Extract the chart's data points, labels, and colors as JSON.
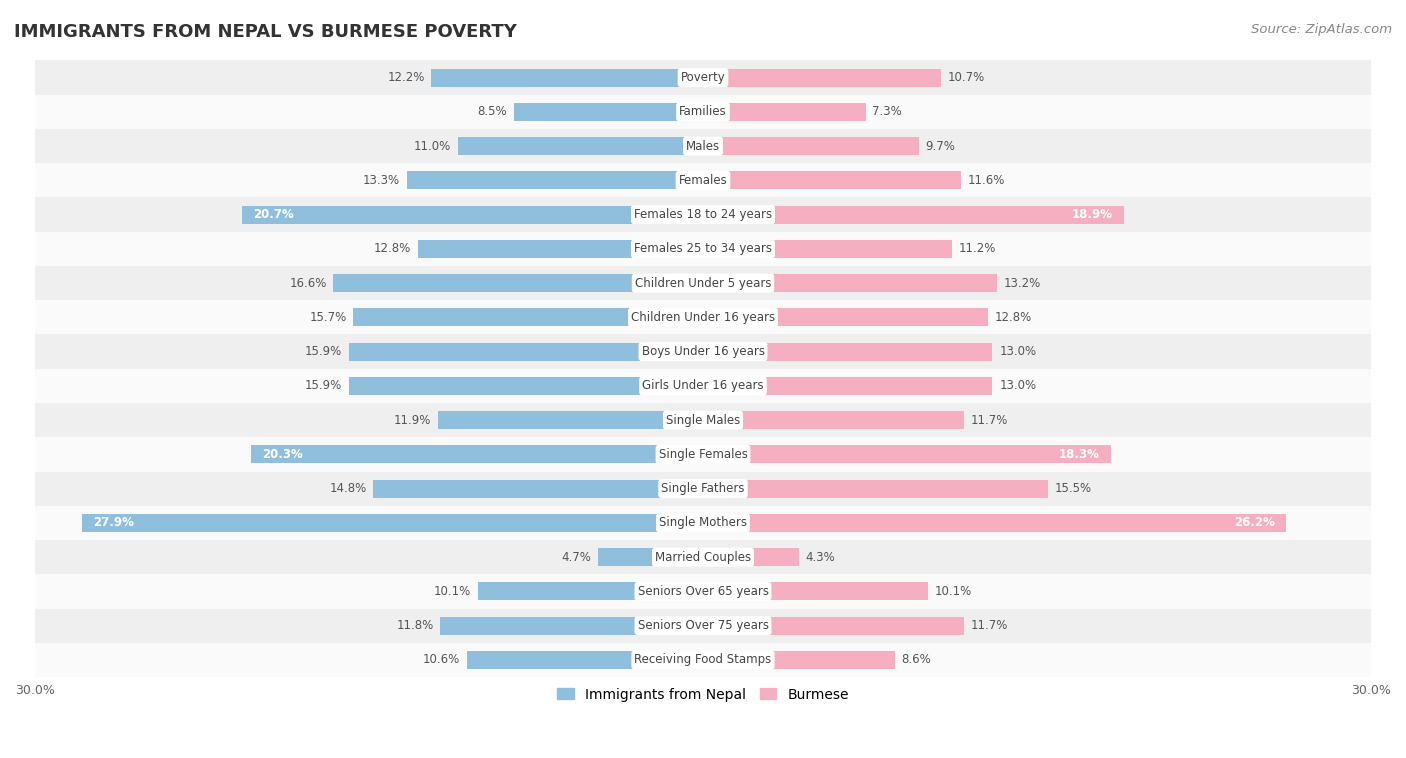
{
  "title": "IMMIGRANTS FROM NEPAL VS BURMESE POVERTY",
  "source": "Source: ZipAtlas.com",
  "categories": [
    "Poverty",
    "Families",
    "Males",
    "Females",
    "Females 18 to 24 years",
    "Females 25 to 34 years",
    "Children Under 5 years",
    "Children Under 16 years",
    "Boys Under 16 years",
    "Girls Under 16 years",
    "Single Males",
    "Single Females",
    "Single Fathers",
    "Single Mothers",
    "Married Couples",
    "Seniors Over 65 years",
    "Seniors Over 75 years",
    "Receiving Food Stamps"
  ],
  "nepal_values": [
    12.2,
    8.5,
    11.0,
    13.3,
    20.7,
    12.8,
    16.6,
    15.7,
    15.9,
    15.9,
    11.9,
    20.3,
    14.8,
    27.9,
    4.7,
    10.1,
    11.8,
    10.6
  ],
  "burmese_values": [
    10.7,
    7.3,
    9.7,
    11.6,
    18.9,
    11.2,
    13.2,
    12.8,
    13.0,
    13.0,
    11.7,
    18.3,
    15.5,
    26.2,
    4.3,
    10.1,
    11.7,
    8.6
  ],
  "nepal_color": "#90bfde",
  "burmese_color": "#f5afc0",
  "nepal_label": "Immigrants from Nepal",
  "burmese_label": "Burmese",
  "xlim": 30.0,
  "bar_height": 0.52,
  "row_bg_even": "#efefef",
  "row_bg_odd": "#fafafa",
  "value_color": "#555555",
  "high_value_color": "#ffffff",
  "high_threshold": 17.0,
  "title_fontsize": 13,
  "source_fontsize": 9.5,
  "tick_fontsize": 9,
  "category_fontsize": 8.5,
  "value_fontsize": 8.5
}
